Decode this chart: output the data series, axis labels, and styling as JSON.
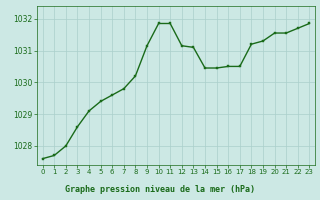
{
  "x": [
    0,
    1,
    2,
    3,
    4,
    5,
    6,
    7,
    8,
    9,
    10,
    11,
    12,
    13,
    14,
    15,
    16,
    17,
    18,
    19,
    20,
    21,
    22,
    23
  ],
  "y": [
    1027.6,
    1027.7,
    1028.0,
    1028.6,
    1029.1,
    1029.4,
    1029.6,
    1029.8,
    1030.2,
    1031.15,
    1031.85,
    1031.85,
    1031.15,
    1031.1,
    1030.45,
    1030.45,
    1030.5,
    1030.5,
    1031.2,
    1031.3,
    1031.55,
    1031.55,
    1031.7,
    1031.85
  ],
  "ylim": [
    1027.4,
    1032.4
  ],
  "yticks": [
    1028,
    1029,
    1030,
    1031,
    1032
  ],
  "xlim": [
    -0.5,
    23.5
  ],
  "xticks": [
    0,
    1,
    2,
    3,
    4,
    5,
    6,
    7,
    8,
    9,
    10,
    11,
    12,
    13,
    14,
    15,
    16,
    17,
    18,
    19,
    20,
    21,
    22,
    23
  ],
  "line_color": "#1a6b1a",
  "marker_color": "#1a6b1a",
  "bg_color": "#cce8e4",
  "grid_color": "#aacfcb",
  "xlabel": "Graphe pression niveau de la mer (hPa)",
  "xlabel_color": "#1a6b1a",
  "xlabel_bg": "#7db87d",
  "tick_color": "#1a6b1a",
  "marker_size": 2.0,
  "line_width": 1.0,
  "fig_width": 3.2,
  "fig_height": 2.0,
  "dpi": 100
}
